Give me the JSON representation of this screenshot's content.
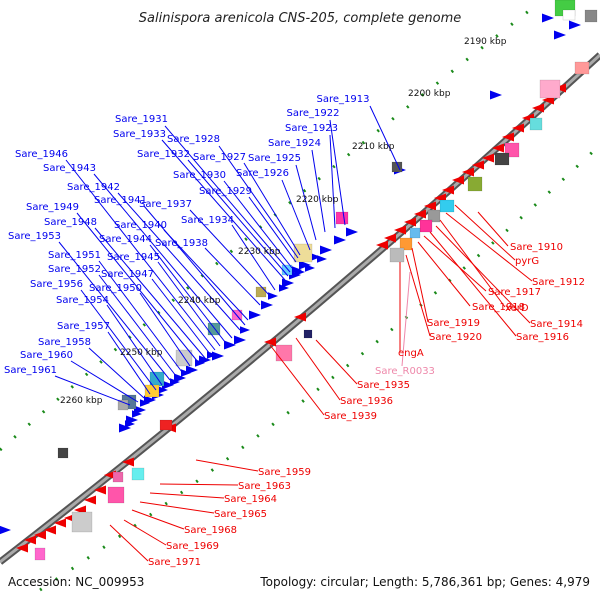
{
  "title": "Salinispora arenicola CNS-205, complete genome",
  "footer": {
    "accession": "Accession: NC_009953",
    "summary": "Topology: circular; Length: 5,786,361 bp; Genes: 4,979"
  },
  "kbp_labels": [
    "2190 kbp",
    "2200 kbp",
    "2210 kbp",
    "2220 kbp",
    "2230 kbp",
    "2240 kbp",
    "2250 kbp",
    "2260 kbp"
  ],
  "blue_labels": [
    "Sare_1913",
    "Sare_1922",
    "Sare_1923",
    "Sare_1924",
    "Sare_1925",
    "Sare_1926",
    "Sare_1927",
    "Sare_1928",
    "Sare_1929",
    "Sare_1930",
    "Sare_1931",
    "Sare_1932",
    "Sare_1933",
    "Sare_1934",
    "Sare_1937",
    "Sare_1938",
    "Sare_1940",
    "Sare_1941",
    "Sare_1942",
    "Sare_1943",
    "Sare_1944",
    "Sare_1945",
    "Sare_1946",
    "Sare_1947",
    "Sare_1948",
    "Sare_1949",
    "Sare_1950",
    "Sare_1951",
    "Sare_1952",
    "Sare_1953",
    "Sare_1954",
    "Sare_1956",
    "Sare_1957",
    "Sare_1958",
    "Sare_1960",
    "Sare_1961"
  ],
  "red_labels": [
    "Sare_1910",
    "pyrG",
    "Sare_1912",
    "xerD",
    "Sare_1914",
    "Sare_1916",
    "Sare_1917",
    "Sare_1918",
    "Sare_1919",
    "Sare_1920",
    "engA",
    "Sare_1935",
    "Sare_1936",
    "Sare_1939",
    "Sare_1959",
    "Sare_1963",
    "Sare_1964",
    "Sare_1965",
    "Sare_1968",
    "Sare_1969",
    "Sare_1971"
  ],
  "pink_labels": [
    "Sare_R0033"
  ],
  "colors": {
    "forward": "#0000ee",
    "reverse": "#ee0000",
    "rna": "#ee88aa",
    "backbone": "#888888",
    "gc_dots": "#1a8a1a"
  }
}
